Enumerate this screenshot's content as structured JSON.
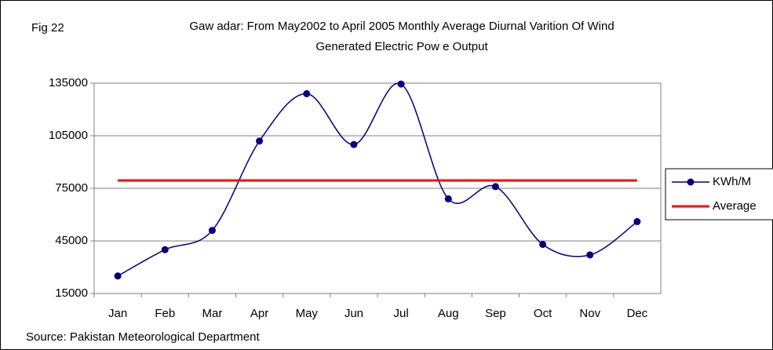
{
  "chart_data": {
    "type": "line",
    "figure_label": "Fig 22",
    "title": "Gaw adar: From May2002 to April 2005 Monthly Average Diurnal Varition Of Wind",
    "subtitle": "Generated Electric Pow e Output",
    "source": "Source: Pakistan Meteorological Department",
    "categories": [
      "Jan",
      "Feb",
      "Mar",
      "Apr",
      "May",
      "Jun",
      "Jul",
      "Aug",
      "Sep",
      "Oct",
      "Nov",
      "Dec"
    ],
    "series": [
      {
        "name": "KWh/M",
        "color": "#000080",
        "markers": true,
        "smooth": true,
        "values": [
          25000,
          40000,
          51000,
          102000,
          129000,
          100000,
          134500,
          69000,
          76000,
          43000,
          37000,
          56000
        ]
      },
      {
        "name": "Average",
        "color": "#ff0000",
        "markers": false,
        "smooth": false,
        "values": [
          79500,
          79500,
          79500,
          79500,
          79500,
          79500,
          79500,
          79500,
          79500,
          79500,
          79500,
          79500
        ]
      }
    ],
    "ylim": [
      15000,
      135000
    ],
    "yticks": [
      15000,
      45000,
      75000,
      105000,
      135000
    ],
    "grid": true,
    "legend": "right"
  }
}
